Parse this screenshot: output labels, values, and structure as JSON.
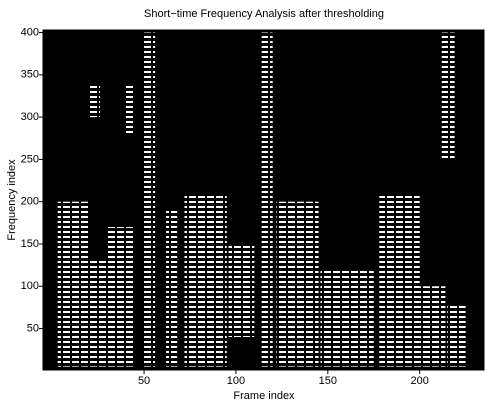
{
  "chart_data": {
    "type": "spectrogram",
    "title": "Short−time Frequency Analysis after thresholding",
    "x_label": "Frame index",
    "y_label": "Frequency index",
    "xlim": [
      -5,
      235
    ],
    "ylim": [
      1,
      403
    ],
    "xticks": [
      50,
      100,
      150,
      200
    ],
    "yticks": [
      50,
      100,
      150,
      200,
      250,
      300,
      350,
      400
    ],
    "background": "#000000",
    "color": "#ffffff",
    "regions": [
      [
        3,
        20,
        5,
        200
      ],
      [
        20,
        30,
        5,
        130
      ],
      [
        30,
        45,
        5,
        170
      ],
      [
        50,
        56,
        5,
        400
      ],
      [
        62,
        68,
        5,
        190
      ],
      [
        72,
        95,
        5,
        210
      ],
      [
        96,
        110,
        40,
        150
      ],
      [
        114,
        120,
        5,
        400
      ],
      [
        122,
        145,
        5,
        200
      ],
      [
        146,
        175,
        5,
        120
      ],
      [
        178,
        200,
        5,
        210
      ],
      [
        200,
        214,
        5,
        100
      ],
      [
        215,
        225,
        5,
        80
      ],
      [
        212,
        219,
        250,
        400
      ],
      [
        20,
        26,
        300,
        340
      ],
      [
        40,
        45,
        280,
        340
      ]
    ]
  }
}
